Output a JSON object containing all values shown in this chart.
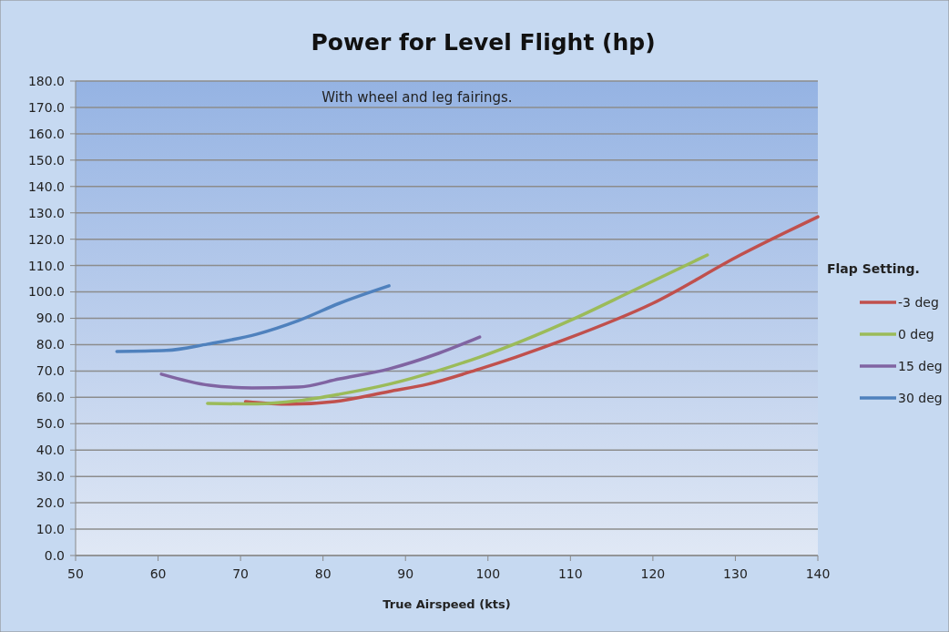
{
  "chart_data": {
    "type": "line",
    "title": "Power for Level Flight (hp)",
    "xlabel": "True Airspeed (kts)",
    "legend_title": "Flap Setting.",
    "annotations": [
      "With wheel and leg fairings."
    ],
    "xlim": [
      50,
      140
    ],
    "xticks": [
      50,
      60,
      70,
      80,
      90,
      100,
      110,
      120,
      130,
      140
    ],
    "ylim": [
      0,
      180
    ],
    "yticks": [
      {
        "value": 0,
        "label": "0.0"
      },
      {
        "value": 10,
        "label": "10.0"
      },
      {
        "value": 20,
        "label": "20.0"
      },
      {
        "value": 30,
        "label": "30.0"
      },
      {
        "value": 40,
        "label": "40.0"
      },
      {
        "value": 50,
        "label": "50.0"
      },
      {
        "value": 60,
        "label": "60.0"
      },
      {
        "value": 70,
        "label": "70.0"
      },
      {
        "value": 80,
        "label": "80.0"
      },
      {
        "value": 90,
        "label": "90.0"
      },
      {
        "value": 100,
        "label": "100.0"
      },
      {
        "value": 110,
        "label": "110.0"
      },
      {
        "value": 120,
        "label": "120.0"
      },
      {
        "value": 130,
        "label": "130.0"
      },
      {
        "value": 140,
        "label": "140.0"
      },
      {
        "value": 150,
        "label": "150.0"
      },
      {
        "value": 160,
        "label": "160.0"
      },
      {
        "value": 170,
        "label": "170.0"
      },
      {
        "value": 180,
        "label": "180.0"
      }
    ],
    "grid": "y",
    "legend": "right",
    "marker": "none",
    "line_style": "solid",
    "series": [
      {
        "name": "-3 deg",
        "color": "#c0504d",
        "x": [
          70.6,
          76,
          81.4,
          88,
          92.7,
          99,
          103.4,
          109.3,
          120,
          130.6,
          140
        ],
        "values": [
          58.4,
          57.4,
          58.4,
          62.2,
          65,
          70.8,
          75.3,
          81.9,
          95.7,
          114,
          128.5
        ]
      },
      {
        "name": "0 deg",
        "color": "#9bbb59",
        "x": [
          66,
          72,
          77,
          82,
          88,
          94,
          99,
          110.4,
          117.4,
          126.6
        ],
        "values": [
          57.7,
          57.5,
          58.7,
          61.2,
          65,
          70.2,
          75.3,
          89.8,
          100.2,
          114
        ]
      },
      {
        "name": "15 deg",
        "color": "#8064a2",
        "x": [
          60.4,
          66.2,
          71.4,
          77,
          82,
          88,
          94,
          99
        ],
        "values": [
          68.8,
          64.6,
          63.6,
          63.9,
          67,
          70.8,
          76.7,
          82.9
        ]
      },
      {
        "name": "30 deg",
        "color": "#4f81bd",
        "x": [
          55,
          61,
          66,
          72,
          77,
          82,
          88
        ],
        "values": [
          77.4,
          77.8,
          80.2,
          84,
          89.1,
          95.7,
          102.3
        ]
      }
    ]
  }
}
